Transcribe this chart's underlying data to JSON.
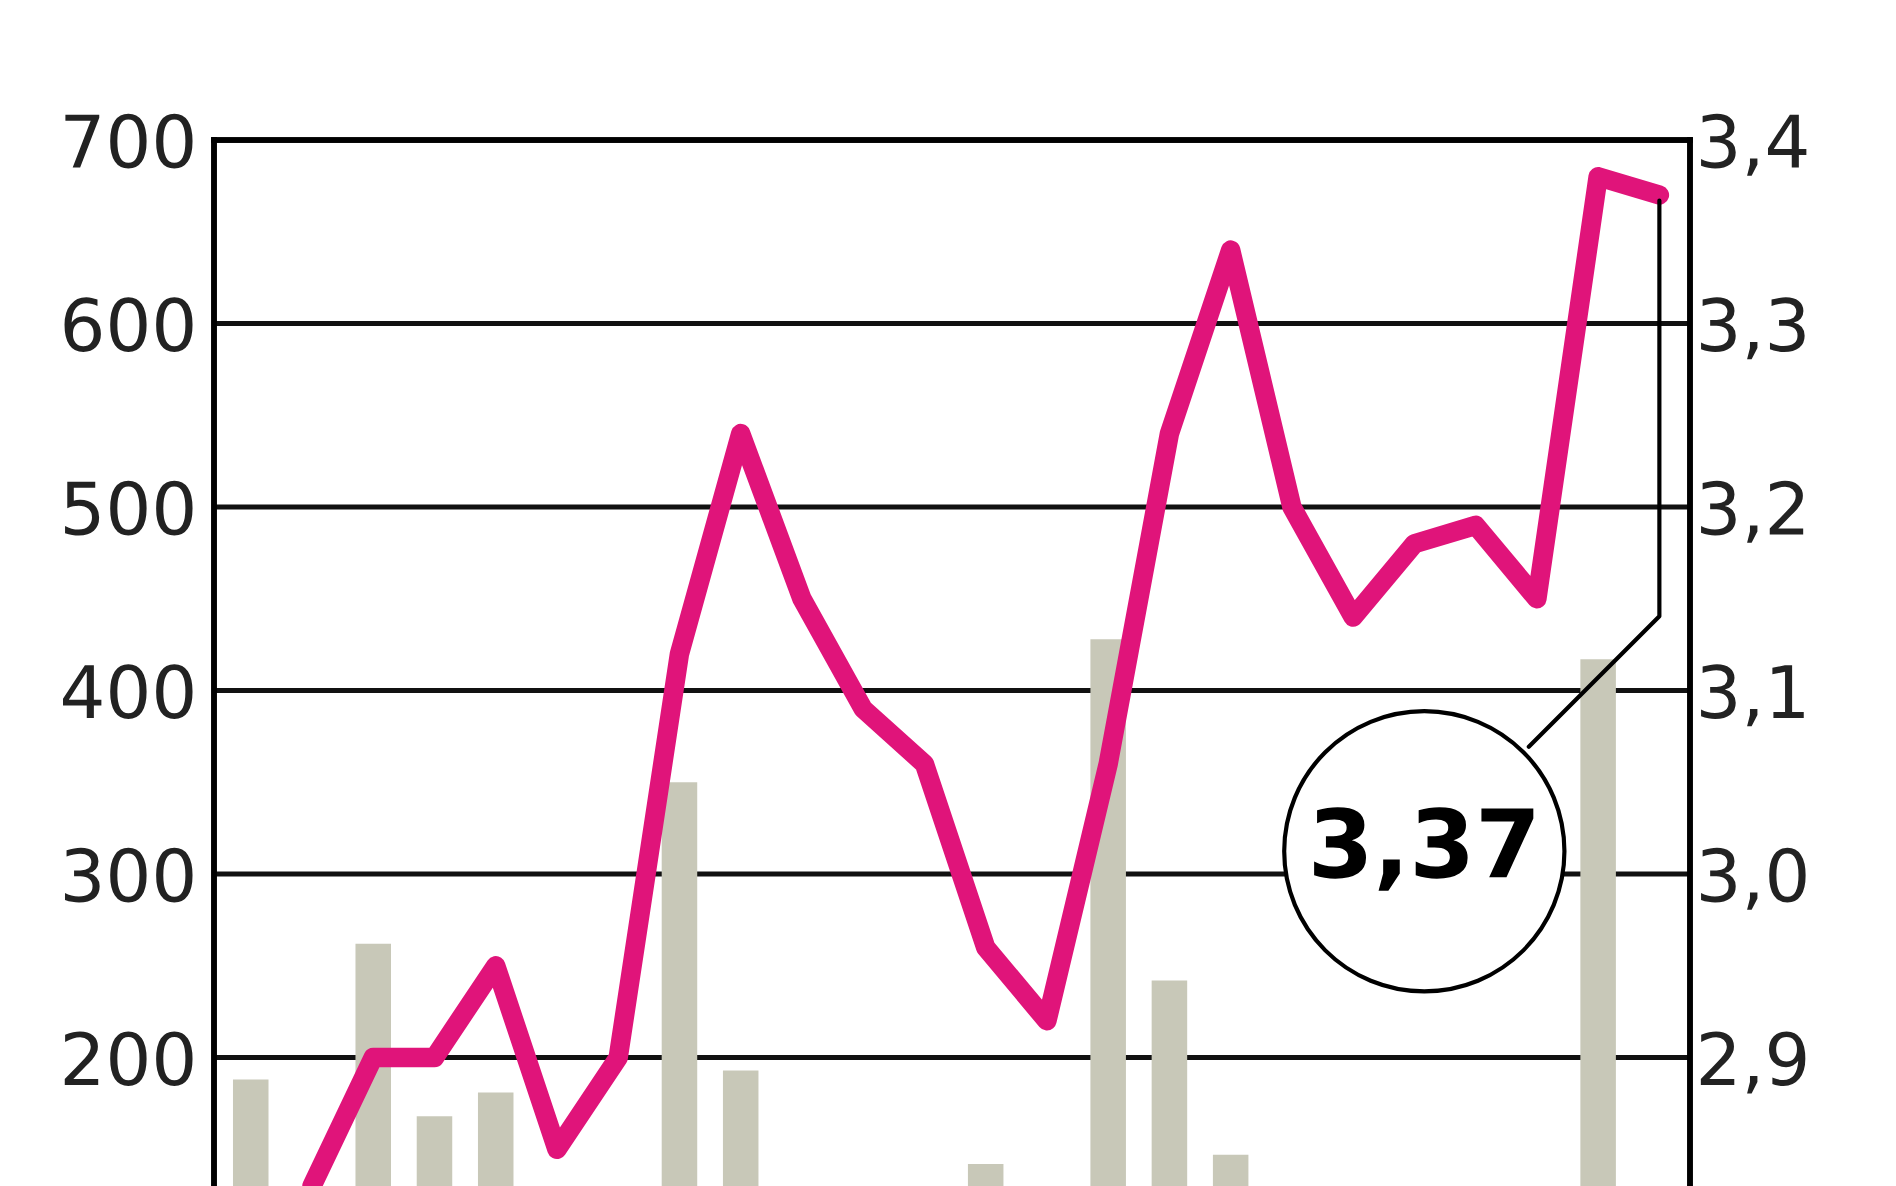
{
  "chart_data": {
    "type": "bar",
    "categories": [
      null,
      null,
      null,
      null,
      null,
      null,
      null,
      null,
      null,
      null,
      null,
      null,
      null,
      null,
      null,
      null,
      null,
      null,
      null,
      null,
      null,
      null,
      null,
      null
    ],
    "series": [
      {
        "color": "#c8c8b8",
        "values": [
          188,
          null,
          262,
          168,
          181,
          null,
          null,
          350,
          193,
          null,
          null,
          null,
          142,
          null,
          428,
          242,
          147,
          null,
          null,
          null,
          null,
          null,
          417,
          null
        ]
      },
      {
        "type": "line",
        "axis": "y2",
        "color": "#e0147a",
        "values": [
          null,
          2.83,
          2.9,
          2.9,
          2.95,
          2.85,
          2.9,
          3.12,
          3.24,
          3.15,
          3.09,
          3.06,
          2.96,
          2.92,
          3.06,
          3.24,
          3.34,
          3.2,
          3.14,
          3.18,
          3.19,
          3.15,
          3.38,
          3.37
        ]
      }
    ],
    "ylim": [
      130,
      700
    ],
    "yticks": [
      200,
      300,
      400,
      500,
      600,
      700
    ],
    "y2lim": [
      2.83,
      3.4
    ],
    "y2ticks": [
      {
        "value": 2.9,
        "label": "2,9"
      },
      {
        "value": 3.0,
        "label": "3,0"
      },
      {
        "value": 3.1,
        "label": "3,1"
      },
      {
        "value": 3.2,
        "label": "3,2"
      },
      {
        "value": 3.3,
        "label": "3,3"
      },
      {
        "value": 3.4,
        "label": "3,4"
      }
    ],
    "grid": "y",
    "annotations": [
      "3,37"
    ]
  }
}
